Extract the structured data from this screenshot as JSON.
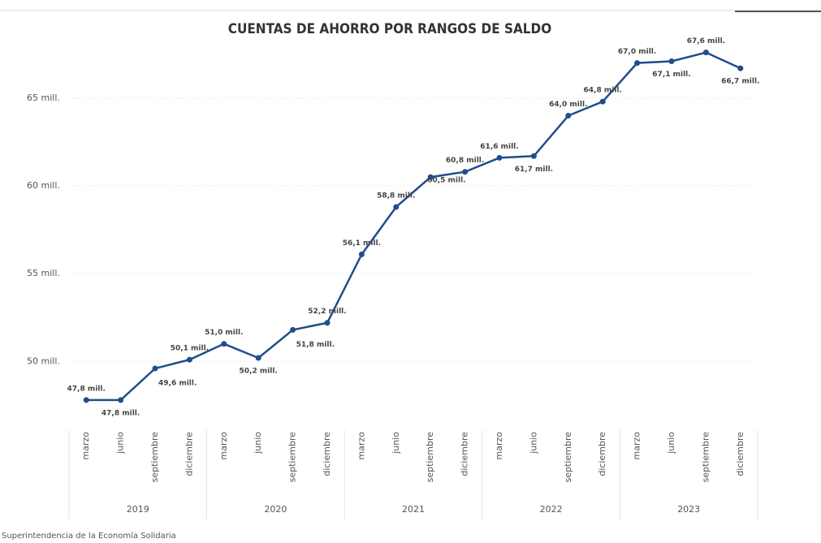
{
  "chart_data": {
    "type": "line",
    "title": "CUENTAS DE AHORRO POR RANGOS DE SALDO",
    "categories": [
      "marzo",
      "junio",
      "septiembre",
      "diciembre",
      "marzo",
      "junio",
      "septiembre",
      "diciembre",
      "marzo",
      "junio",
      "septiembre",
      "diciembre",
      "marzo",
      "junio",
      "septiembre",
      "diciembre",
      "marzo",
      "junio",
      "septiembre",
      "diciembre"
    ],
    "years": [
      "2019",
      "2020",
      "2021",
      "2022",
      "2023"
    ],
    "series": [
      {
        "name": "Cuentas de ahorro",
        "color": "#1f4e8c",
        "values": [
          47.8,
          47.8,
          49.6,
          50.1,
          51.0,
          50.2,
          51.8,
          52.2,
          56.1,
          58.8,
          60.5,
          60.8,
          61.6,
          61.7,
          64.0,
          64.8,
          67.0,
          67.1,
          67.6,
          66.7
        ],
        "value_labels": [
          "47,8 mill.",
          "47,8 mill.",
          "49,6 mill.",
          "50,1 mill.",
          "51,0 mill.",
          "50,2 mill.",
          "51,8 mill.",
          "52,2 mill.",
          "56,1 mill.",
          "58,8 mill.",
          "60,5 mill.",
          "60,8 mill.",
          "61,6 mill.",
          "61,7 mill.",
          "64,0 mill.",
          "64,8 mill.",
          "67,0 mill.",
          "67,1 mill.",
          "67,6 mill.",
          "66,7 mill."
        ]
      }
    ],
    "ylim": [
      46.5,
      68
    ],
    "yticks": [
      {
        "value": 50,
        "label": "50 mill."
      },
      {
        "value": 55,
        "label": "55 mill."
      },
      {
        "value": 60,
        "label": "60 mill."
      },
      {
        "value": 65,
        "label": "65 mill."
      }
    ],
    "grid": true,
    "source": "Superintendencia de la Economía Solidaria"
  }
}
